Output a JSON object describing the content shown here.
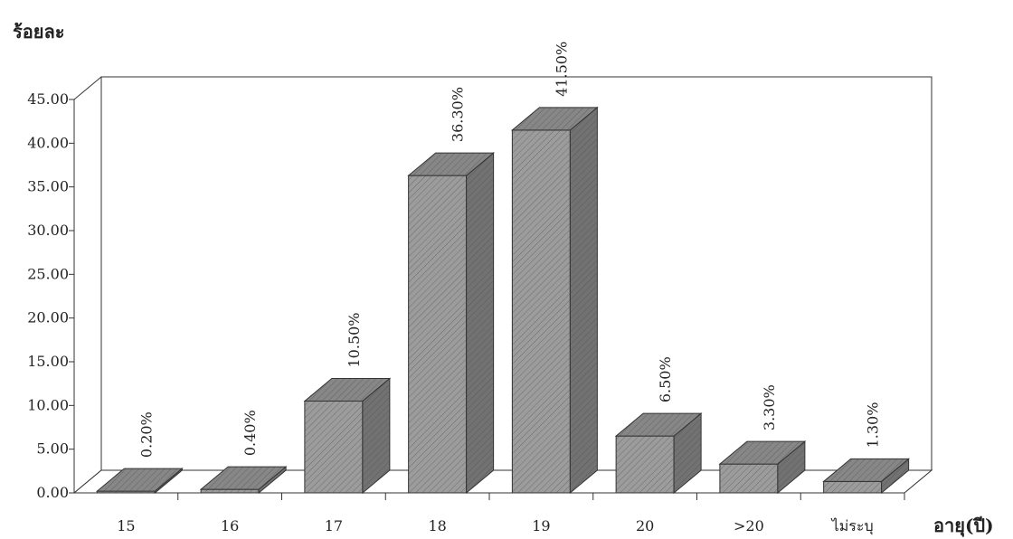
{
  "chart_data": {
    "type": "bar3d",
    "y_axis_title": "ร้อยละ",
    "x_axis_title": "อายุ(ปี)",
    "categories": [
      "15",
      "16",
      "17",
      "18",
      "19",
      "20",
      ">20",
      "ไม่ระบุ"
    ],
    "values": [
      0.2,
      0.4,
      10.5,
      36.3,
      41.5,
      6.5,
      3.3,
      1.3
    ],
    "value_labels": [
      "0.20%",
      "0.40%",
      "10.50%",
      "36.30%",
      "41.50%",
      "6.50%",
      "3.30%",
      "1.30%"
    ],
    "color": "#8e8e8e",
    "ylim": [
      0,
      45
    ],
    "yticks": [
      {
        "value": 0,
        "label": "0.00"
      },
      {
        "value": 5,
        "label": "5.00"
      },
      {
        "value": 10,
        "label": "10.00"
      },
      {
        "value": 15,
        "label": "15.00"
      },
      {
        "value": 20,
        "label": "20.00"
      },
      {
        "value": 25,
        "label": "25.00"
      },
      {
        "value": 30,
        "label": "30.00"
      },
      {
        "value": 35,
        "label": "35.00"
      },
      {
        "value": 40,
        "label": "40.00"
      },
      {
        "value": 45,
        "label": "45.00"
      }
    ],
    "grid": false
  }
}
